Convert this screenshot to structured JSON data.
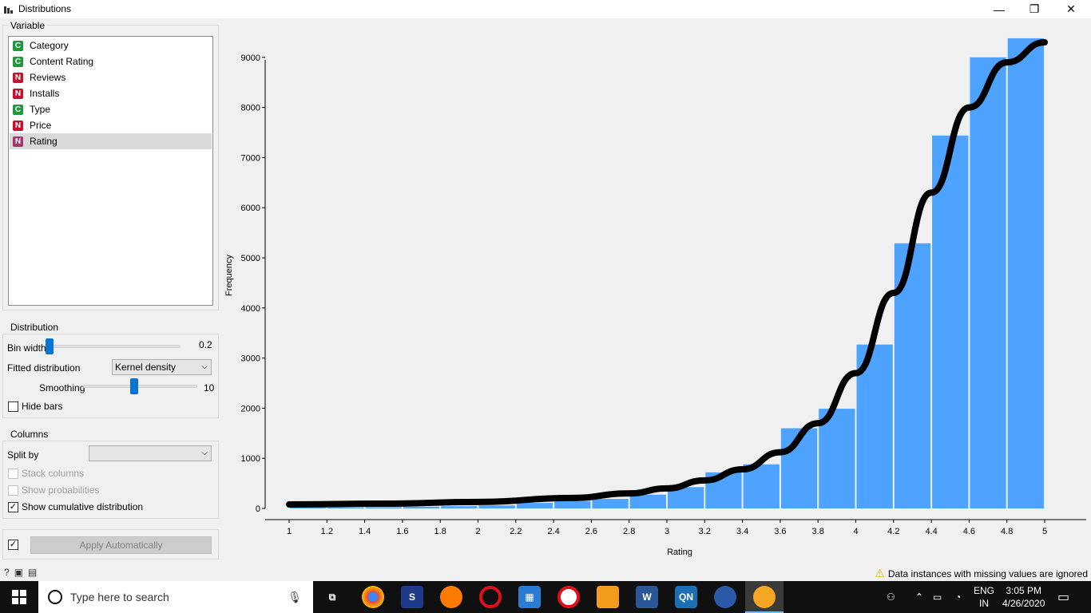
{
  "window": {
    "title": "Distributions",
    "minimize": "—",
    "maximize": "❐",
    "close": "✕"
  },
  "variable": {
    "title": "Variable",
    "items": [
      {
        "badge": "C",
        "type": "c",
        "label": "Category"
      },
      {
        "badge": "C",
        "type": "c",
        "label": "Content Rating"
      },
      {
        "badge": "N",
        "type": "n",
        "label": "Reviews"
      },
      {
        "badge": "N",
        "type": "n",
        "label": "Installs"
      },
      {
        "badge": "C",
        "type": "c",
        "label": "Type"
      },
      {
        "badge": "N",
        "type": "n",
        "label": "Price"
      },
      {
        "badge": "N",
        "type": "n",
        "label": "Rating",
        "selected": true
      }
    ]
  },
  "distribution": {
    "title": "Distribution",
    "bin_width_label": "Bin width",
    "bin_width_value": "0.2",
    "fitted_label": "Fitted distribution",
    "fitted_value": "Kernel density",
    "smoothing_label": "Smoothing",
    "smoothing_value": "10",
    "hide_bars_label": "Hide bars"
  },
  "columns": {
    "title": "Columns",
    "split_by_label": "Split by",
    "split_by_value": "",
    "stack_label": "Stack columns",
    "probabilities_label": "Show probabilities",
    "cumulative_label": "Show cumulative distribution",
    "cumulative_checked": true
  },
  "apply": {
    "label": "Apply Automatically",
    "checked": true
  },
  "status": {
    "message": "Data instances with missing values are ignored"
  },
  "chart_data": {
    "type": "bar",
    "xlabel": "Rating",
    "ylabel": "Frequency",
    "ylim": [
      0,
      9300
    ],
    "yticks": [
      0,
      1000,
      2000,
      3000,
      4000,
      5000,
      6000,
      7000,
      8000,
      9000
    ],
    "xticks": [
      "1",
      "1.2",
      "1.4",
      "1.6",
      "1.8",
      "2",
      "2.2",
      "2.4",
      "2.6",
      "2.8",
      "3",
      "3.2",
      "3.4",
      "3.6",
      "3.8",
      "4",
      "4.2",
      "4.4",
      "4.6",
      "4.8",
      "5"
    ],
    "bins": [
      {
        "x0": 1.0,
        "x1": 1.2,
        "value": 20
      },
      {
        "x0": 1.2,
        "x1": 1.4,
        "value": 20
      },
      {
        "x0": 1.4,
        "x1": 1.6,
        "value": 25
      },
      {
        "x0": 1.6,
        "x1": 1.8,
        "value": 35
      },
      {
        "x0": 1.8,
        "x1": 2.0,
        "value": 45
      },
      {
        "x0": 2.0,
        "x1": 2.2,
        "value": 60
      },
      {
        "x0": 2.2,
        "x1": 2.4,
        "value": 110
      },
      {
        "x0": 2.4,
        "x1": 2.6,
        "value": 150
      },
      {
        "x0": 2.6,
        "x1": 2.8,
        "value": 190
      },
      {
        "x0": 2.8,
        "x1": 3.0,
        "value": 275
      },
      {
        "x0": 3.0,
        "x1": 3.2,
        "value": 425
      },
      {
        "x0": 3.2,
        "x1": 3.4,
        "value": 720
      },
      {
        "x0": 3.4,
        "x1": 3.6,
        "value": 880
      },
      {
        "x0": 3.6,
        "x1": 3.8,
        "value": 1600
      },
      {
        "x0": 3.8,
        "x1": 4.0,
        "value": 1990
      },
      {
        "x0": 4.0,
        "x1": 4.2,
        "value": 3270
      },
      {
        "x0": 4.2,
        "x1": 4.4,
        "value": 5290
      },
      {
        "x0": 4.4,
        "x1": 4.6,
        "value": 7440
      },
      {
        "x0": 4.6,
        "x1": 4.8,
        "value": 9000
      },
      {
        "x0": 4.8,
        "x1": 5.0,
        "value": 9380
      }
    ],
    "curve": [
      [
        1.0,
        80
      ],
      [
        1.5,
        95
      ],
      [
        2.0,
        130
      ],
      [
        2.5,
        210
      ],
      [
        2.8,
        300
      ],
      [
        3.0,
        400
      ],
      [
        3.2,
        560
      ],
      [
        3.4,
        780
      ],
      [
        3.6,
        1120
      ],
      [
        3.8,
        1700
      ],
      [
        4.0,
        2700
      ],
      [
        4.2,
        4300
      ],
      [
        4.4,
        6300
      ],
      [
        4.6,
        8000
      ],
      [
        4.8,
        8900
      ],
      [
        5.0,
        9300
      ]
    ],
    "bar_color": "#4da3ff",
    "curve_color": "#000000"
  },
  "taskbar": {
    "search_placeholder": "Type here to search",
    "lang": "ENG",
    "region": "IN",
    "time": "3:05 PM",
    "date": "4/26/2020"
  }
}
